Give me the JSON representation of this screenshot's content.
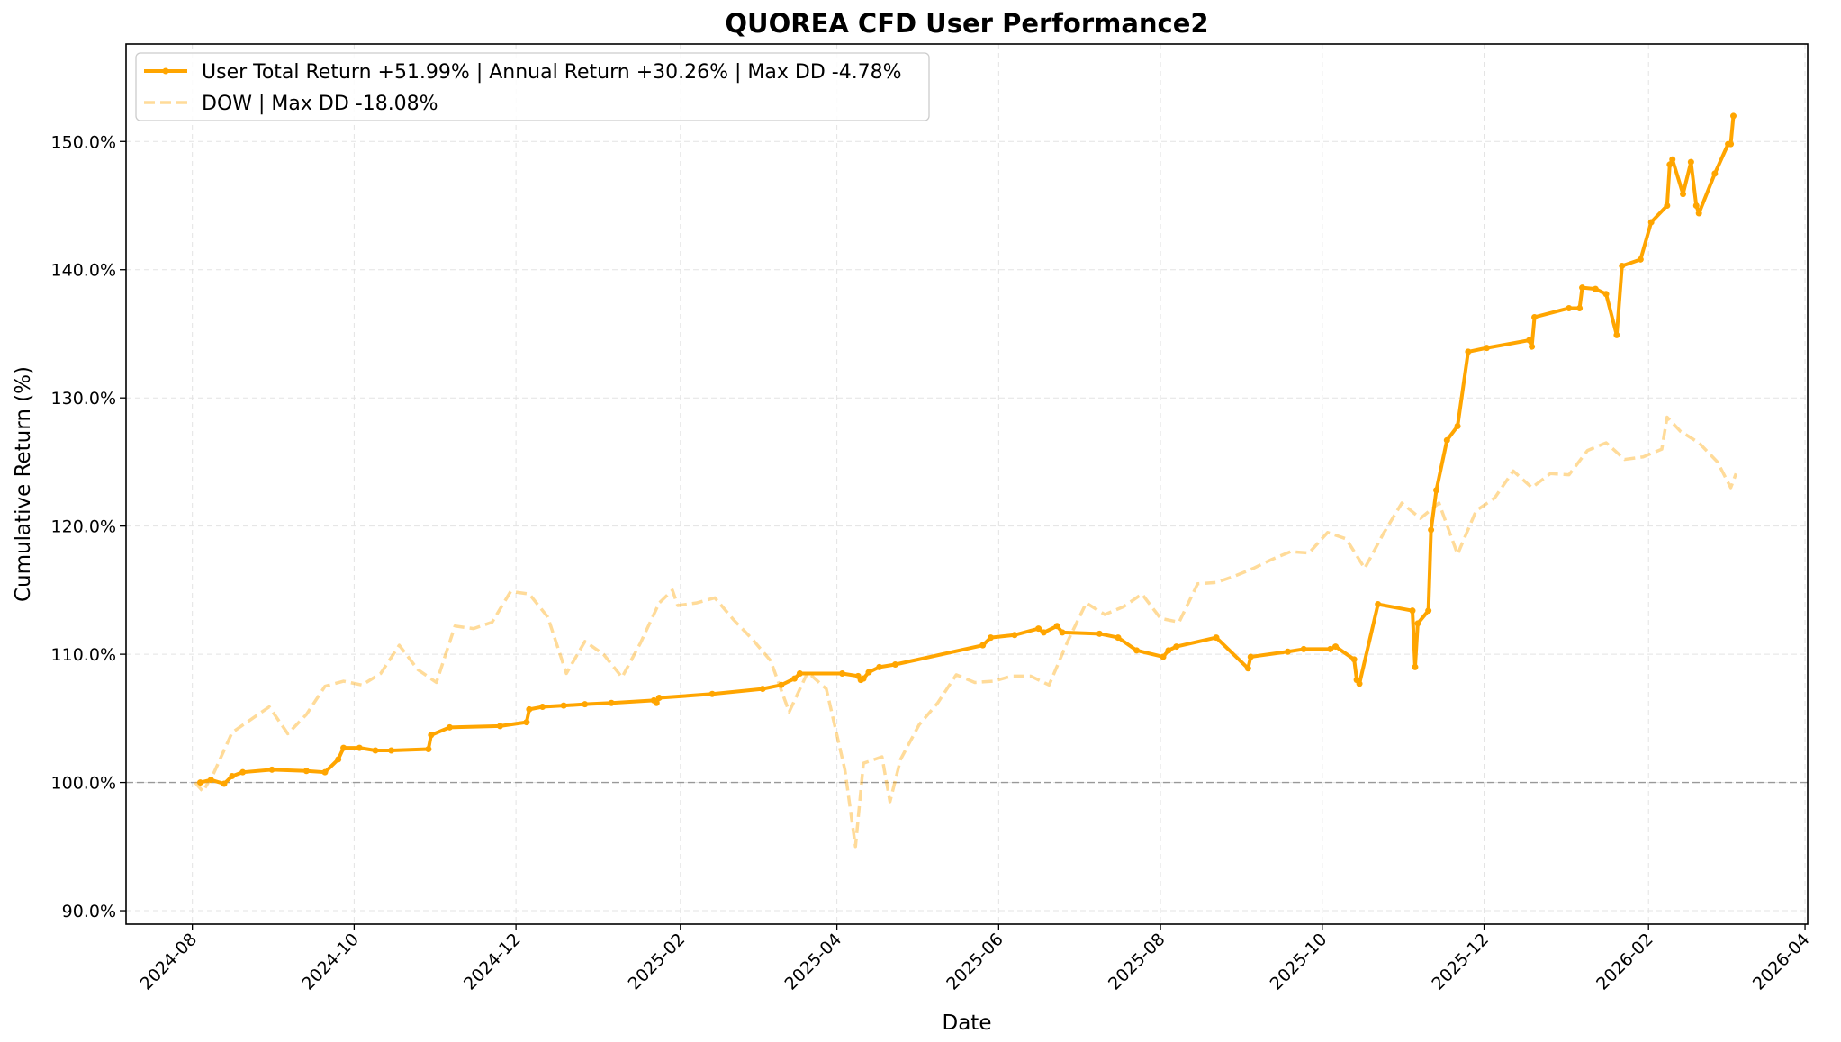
{
  "chart_data": {
    "type": "line",
    "title": "QUOREA CFD User Performance2",
    "xlabel": "Date",
    "ylabel": "Cumulative Return (%)",
    "xlim": [
      "2024-07-07",
      "2026-04-02"
    ],
    "ylim": [
      88.95,
      157.6
    ],
    "grid": true,
    "legend_position": "top-left",
    "x_ticks": [
      "2024-08",
      "2024-10",
      "2024-12",
      "2025-02",
      "2025-04",
      "2025-06",
      "2025-08",
      "2025-10",
      "2025-12",
      "2026-02",
      "2026-04"
    ],
    "y_ticks": [
      90,
      100,
      110,
      120,
      130,
      140,
      150
    ],
    "y_tick_labels": [
      "90.0%",
      "100.0%",
      "110.0%",
      "120.0%",
      "130.0%",
      "140.0%",
      "150.0%"
    ],
    "reference_line": 100,
    "series": [
      {
        "name": "User Total Return +51.99% | Annual Return +30.26% | Max DD -4.78%",
        "color": "#FFA500",
        "style": "solid-with-markers",
        "points": [
          [
            "2024-08-04",
            100.0
          ],
          [
            "2024-08-08",
            100.2
          ],
          [
            "2024-08-13",
            99.9
          ],
          [
            "2024-08-16",
            100.5
          ],
          [
            "2024-08-20",
            100.8
          ],
          [
            "2024-08-31",
            101.0
          ],
          [
            "2024-09-13",
            100.9
          ],
          [
            "2024-09-20",
            100.8
          ],
          [
            "2024-09-25",
            101.8
          ],
          [
            "2024-09-27",
            102.7
          ],
          [
            "2024-10-03",
            102.7
          ],
          [
            "2024-10-09",
            102.5
          ],
          [
            "2024-10-15",
            102.5
          ],
          [
            "2024-10-29",
            102.6
          ],
          [
            "2024-10-30",
            103.7
          ],
          [
            "2024-11-06",
            104.3
          ],
          [
            "2024-11-25",
            104.4
          ],
          [
            "2024-12-05",
            104.7
          ],
          [
            "2024-12-06",
            105.7
          ],
          [
            "2024-12-11",
            105.9
          ],
          [
            "2024-12-19",
            106.0
          ],
          [
            "2024-12-27",
            106.1
          ],
          [
            "2025-01-06",
            106.2
          ],
          [
            "2025-01-22",
            106.4
          ],
          [
            "2025-01-23",
            106.2
          ],
          [
            "2025-01-24",
            106.6
          ],
          [
            "2025-02-13",
            106.9
          ],
          [
            "2025-03-04",
            107.3
          ],
          [
            "2025-03-11",
            107.6
          ],
          [
            "2025-03-16",
            108.1
          ],
          [
            "2025-03-18",
            108.5
          ],
          [
            "2025-04-03",
            108.5
          ],
          [
            "2025-04-09",
            108.3
          ],
          [
            "2025-04-10",
            108.0
          ],
          [
            "2025-04-11",
            108.1
          ],
          [
            "2025-04-13",
            108.6
          ],
          [
            "2025-04-17",
            109.0
          ],
          [
            "2025-04-23",
            109.2
          ],
          [
            "2025-05-26",
            110.7
          ],
          [
            "2025-05-29",
            111.3
          ],
          [
            "2025-06-07",
            111.5
          ],
          [
            "2025-06-16",
            112.0
          ],
          [
            "2025-06-18",
            111.7
          ],
          [
            "2025-06-23",
            112.2
          ],
          [
            "2025-06-25",
            111.7
          ],
          [
            "2025-07-09",
            111.6
          ],
          [
            "2025-07-16",
            111.3
          ],
          [
            "2025-07-23",
            110.3
          ],
          [
            "2025-08-02",
            109.8
          ],
          [
            "2025-08-04",
            110.3
          ],
          [
            "2025-08-07",
            110.6
          ],
          [
            "2025-08-22",
            111.3
          ],
          [
            "2025-09-03",
            108.9
          ],
          [
            "2025-09-04",
            109.8
          ],
          [
            "2025-09-18",
            110.2
          ],
          [
            "2025-09-24",
            110.4
          ],
          [
            "2025-10-04",
            110.4
          ],
          [
            "2025-10-06",
            110.6
          ],
          [
            "2025-10-13",
            109.6
          ],
          [
            "2025-10-14",
            108.0
          ],
          [
            "2025-10-15",
            107.7
          ],
          [
            "2025-10-22",
            113.9
          ],
          [
            "2025-11-04",
            113.4
          ],
          [
            "2025-11-05",
            109.0
          ],
          [
            "2025-11-06",
            112.4
          ],
          [
            "2025-11-10",
            113.4
          ],
          [
            "2025-11-11",
            119.7
          ],
          [
            "2025-11-13",
            122.8
          ],
          [
            "2025-11-17",
            126.7
          ],
          [
            "2025-11-21",
            127.8
          ],
          [
            "2025-11-25",
            133.6
          ],
          [
            "2025-12-02",
            133.9
          ],
          [
            "2025-12-18",
            134.5
          ],
          [
            "2025-12-19",
            134.0
          ],
          [
            "2025-12-20",
            136.3
          ],
          [
            "2026-01-02",
            137.0
          ],
          [
            "2026-01-06",
            137.0
          ],
          [
            "2026-01-07",
            138.6
          ],
          [
            "2026-01-12",
            138.5
          ],
          [
            "2026-01-16",
            138.1
          ],
          [
            "2026-01-20",
            134.9
          ],
          [
            "2026-01-22",
            140.3
          ],
          [
            "2026-01-29",
            140.8
          ],
          [
            "2026-02-02",
            143.7
          ],
          [
            "2026-02-08",
            145.0
          ],
          [
            "2026-02-09",
            148.2
          ],
          [
            "2026-02-10",
            148.6
          ],
          [
            "2026-02-14",
            145.9
          ],
          [
            "2026-02-17",
            148.4
          ],
          [
            "2026-02-19",
            145.0
          ],
          [
            "2026-02-20",
            144.4
          ],
          [
            "2026-02-26",
            147.5
          ],
          [
            "2026-03-03",
            149.8
          ],
          [
            "2026-03-04",
            149.8
          ],
          [
            "2026-03-05",
            151.99
          ]
        ]
      },
      {
        "name": "DOW | Max DD -18.08%",
        "color": "#FFA500",
        "style": "dashed-faded",
        "points": [
          [
            "2024-08-02",
            100.0
          ],
          [
            "2024-08-05",
            99.3
          ],
          [
            "2024-08-09",
            100.7
          ],
          [
            "2024-08-16",
            103.9
          ],
          [
            "2024-08-23",
            104.9
          ],
          [
            "2024-08-30",
            105.9
          ],
          [
            "2024-09-06",
            103.8
          ],
          [
            "2024-09-13",
            105.3
          ],
          [
            "2024-09-20",
            107.5
          ],
          [
            "2024-09-27",
            107.9
          ],
          [
            "2024-10-04",
            107.6
          ],
          [
            "2024-10-11",
            108.5
          ],
          [
            "2024-10-18",
            110.7
          ],
          [
            "2024-10-25",
            108.8
          ],
          [
            "2024-11-01",
            107.8
          ],
          [
            "2024-11-08",
            112.2
          ],
          [
            "2024-11-15",
            112.0
          ],
          [
            "2024-11-22",
            112.5
          ],
          [
            "2024-11-29",
            114.9
          ],
          [
            "2024-12-06",
            114.7
          ],
          [
            "2024-12-13",
            112.9
          ],
          [
            "2024-12-20",
            108.5
          ],
          [
            "2024-12-27",
            111.0
          ],
          [
            "2025-01-03",
            110.0
          ],
          [
            "2025-01-10",
            108.2
          ],
          [
            "2025-01-17",
            110.9
          ],
          [
            "2025-01-24",
            114.0
          ],
          [
            "2025-01-29",
            115.0
          ],
          [
            "2025-01-31",
            113.8
          ],
          [
            "2025-02-07",
            114.0
          ],
          [
            "2025-02-14",
            114.4
          ],
          [
            "2025-02-21",
            112.7
          ],
          [
            "2025-02-28",
            111.2
          ],
          [
            "2025-03-07",
            109.5
          ],
          [
            "2025-03-14",
            105.5
          ],
          [
            "2025-03-21",
            108.6
          ],
          [
            "2025-03-28",
            107.3
          ],
          [
            "2025-04-04",
            101.0
          ],
          [
            "2025-04-08",
            95.0
          ],
          [
            "2025-04-11",
            101.5
          ],
          [
            "2025-04-18",
            102.0
          ],
          [
            "2025-04-21",
            98.5
          ],
          [
            "2025-04-25",
            101.8
          ],
          [
            "2025-05-02",
            104.5
          ],
          [
            "2025-05-09",
            106.2
          ],
          [
            "2025-05-16",
            108.4
          ],
          [
            "2025-05-23",
            107.8
          ],
          [
            "2025-05-30",
            107.9
          ],
          [
            "2025-06-06",
            108.3
          ],
          [
            "2025-06-13",
            108.3
          ],
          [
            "2025-06-20",
            107.6
          ],
          [
            "2025-06-27",
            111.0
          ],
          [
            "2025-07-04",
            114.0
          ],
          [
            "2025-07-11",
            113.1
          ],
          [
            "2025-07-18",
            113.7
          ],
          [
            "2025-07-25",
            114.7
          ],
          [
            "2025-08-01",
            112.8
          ],
          [
            "2025-08-08",
            112.5
          ],
          [
            "2025-08-15",
            115.5
          ],
          [
            "2025-08-22",
            115.6
          ],
          [
            "2025-08-29",
            116.1
          ],
          [
            "2025-09-05",
            116.7
          ],
          [
            "2025-09-12",
            117.4
          ],
          [
            "2025-09-19",
            118.0
          ],
          [
            "2025-09-26",
            117.9
          ],
          [
            "2025-10-03",
            119.5
          ],
          [
            "2025-10-10",
            119.0
          ],
          [
            "2025-10-17",
            116.7
          ],
          [
            "2025-10-24",
            119.4
          ],
          [
            "2025-10-31",
            121.8
          ],
          [
            "2025-11-07",
            120.6
          ],
          [
            "2025-11-14",
            121.8
          ],
          [
            "2025-11-21",
            117.8
          ],
          [
            "2025-11-28",
            121.2
          ],
          [
            "2025-12-05",
            122.2
          ],
          [
            "2025-12-12",
            124.3
          ],
          [
            "2025-12-19",
            123.0
          ],
          [
            "2025-12-26",
            124.1
          ],
          [
            "2026-01-02",
            124.0
          ],
          [
            "2026-01-09",
            125.9
          ],
          [
            "2026-01-16",
            126.5
          ],
          [
            "2026-01-23",
            125.2
          ],
          [
            "2026-01-30",
            125.4
          ],
          [
            "2026-02-06",
            126.0
          ],
          [
            "2026-02-08",
            128.5
          ],
          [
            "2026-02-13",
            127.4
          ],
          [
            "2026-02-20",
            126.5
          ],
          [
            "2026-02-27",
            125.0
          ],
          [
            "2026-03-04",
            123.0
          ],
          [
            "2026-03-06",
            124.1
          ]
        ]
      }
    ]
  }
}
